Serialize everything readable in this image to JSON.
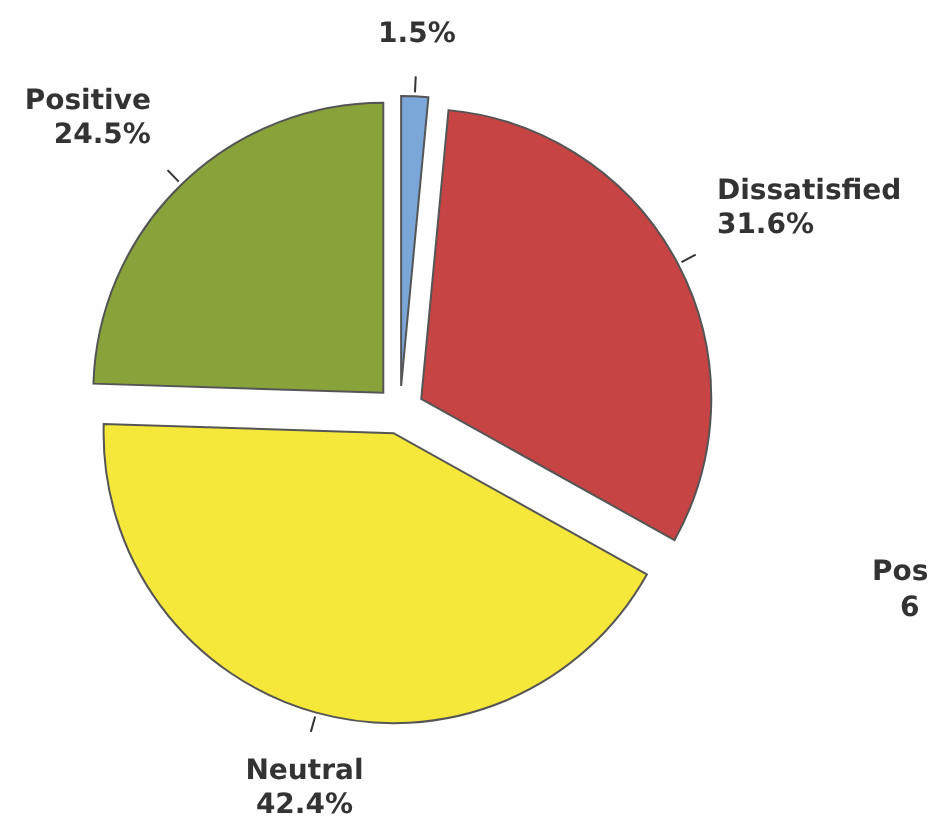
{
  "chart_data": {
    "type": "pie",
    "categories": [
      null,
      "Dissatisfied",
      "Neutral",
      "Positive"
    ],
    "values": [
      1.5,
      31.6,
      42.4,
      24.5
    ],
    "colors": [
      "#7aa6d8",
      "#c74444",
      "#f5e83a",
      "#88a33a"
    ],
    "value_labels": [
      "1.5%",
      "31.6%",
      "42.4%",
      "24.5%"
    ],
    "annotations": [
      "Pos",
      "6"
    ]
  }
}
